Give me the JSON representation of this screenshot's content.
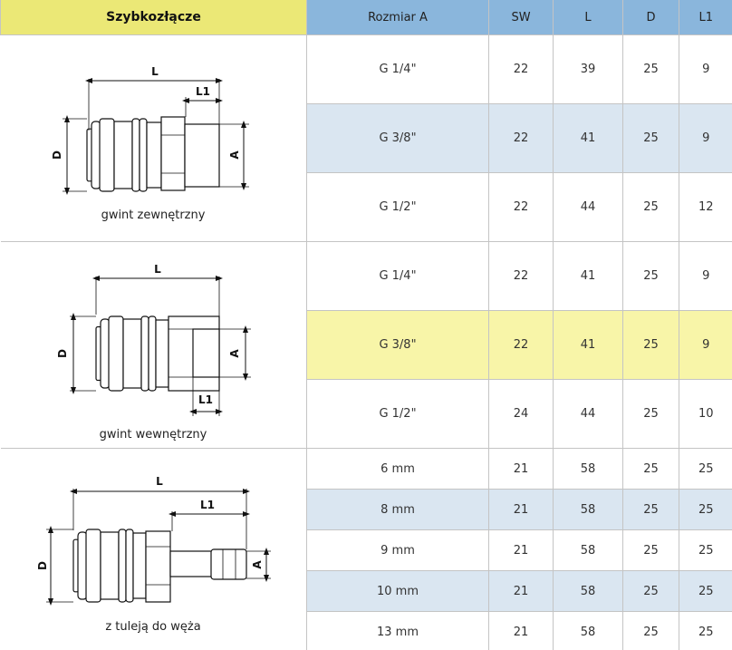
{
  "header": {
    "product": "Szybkozłącze",
    "columns": [
      "Rozmiar A",
      "SW",
      "L",
      "D",
      "L1"
    ]
  },
  "groups": [
    {
      "caption": "gwint zewnętrzny",
      "labels": {
        "L": "L",
        "L1": "L1",
        "D": "D",
        "A": "A"
      },
      "rows": [
        [
          "G 1/4\"",
          "22",
          "39",
          "25",
          "9"
        ],
        [
          "G 3/8\"",
          "22",
          "41",
          "25",
          "9"
        ],
        [
          "G 1/2\"",
          "22",
          "44",
          "25",
          "12"
        ]
      ]
    },
    {
      "caption": "gwint wewnętrzny",
      "labels": {
        "L": "L",
        "L1": "L1",
        "D": "D",
        "A": "A"
      },
      "rows": [
        [
          "G 1/4\"",
          "22",
          "41",
          "25",
          "9"
        ],
        [
          "G 3/8\"",
          "22",
          "41",
          "25",
          "9"
        ],
        [
          "G 1/2\"",
          "24",
          "44",
          "25",
          "10"
        ]
      ]
    },
    {
      "caption": "z tuleją do węża",
      "labels": {
        "L": "L",
        "L1": "L1",
        "D": "D",
        "A": "A"
      },
      "rows": [
        [
          "6 mm",
          "21",
          "58",
          "25",
          "25"
        ],
        [
          "8 mm",
          "21",
          "58",
          "25",
          "25"
        ],
        [
          "9 mm",
          "21",
          "58",
          "25",
          "25"
        ],
        [
          "10 mm",
          "21",
          "58",
          "25",
          "25"
        ],
        [
          "13 mm",
          "21",
          "58",
          "25",
          "25"
        ]
      ]
    }
  ],
  "row_colors": {
    "white": "#ffffff",
    "blue": "#dae6f1",
    "highlight": "#f8f5a8",
    "header_yellow": "#ebe876",
    "header_blue": "#8ab6dc"
  }
}
